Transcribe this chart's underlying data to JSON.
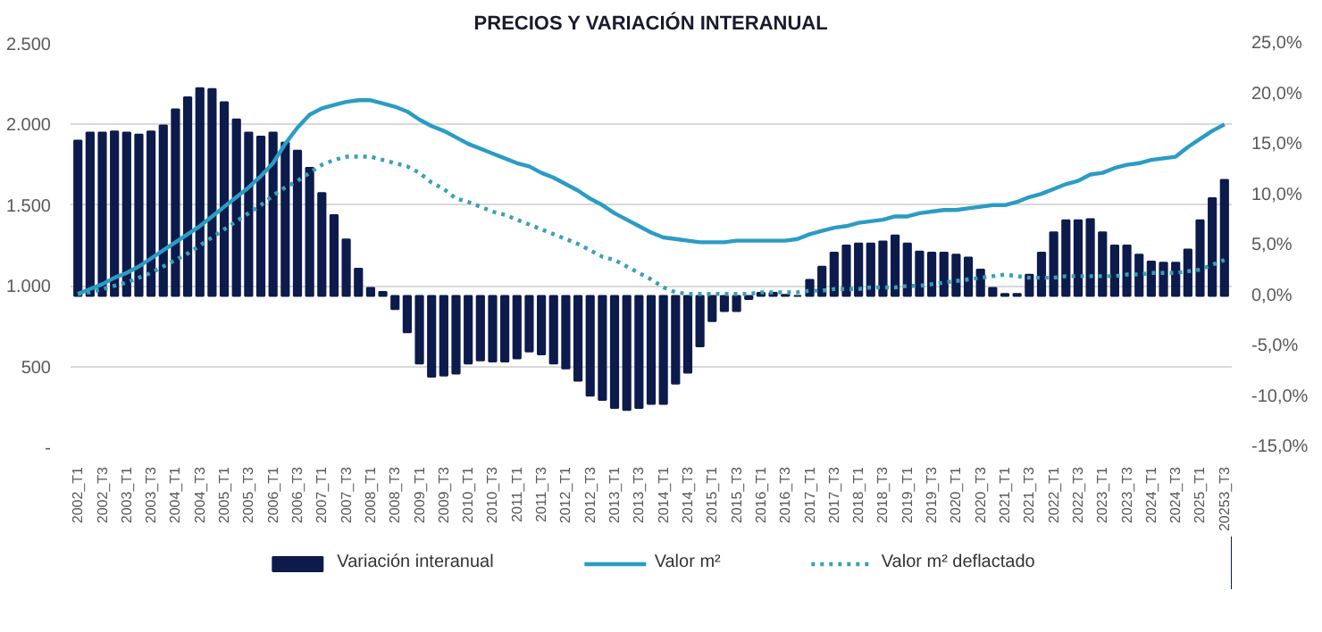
{
  "chart_data": {
    "type": "bar",
    "title": "PRECIOS Y VARIACIÓN INTERANUAL",
    "categories": [
      "2002_T1",
      null,
      "2002_T3",
      null,
      "2003_T1",
      null,
      "2003_T3",
      null,
      "2004_T1",
      null,
      "2004_T3",
      null,
      "2005_T1",
      null,
      "2005_T3",
      null,
      "2006_T1",
      null,
      "2006_T3",
      null,
      "2007_T1",
      null,
      "2007_T3",
      null,
      "2008_T1",
      null,
      "2008_T3",
      null,
      "2009_T1",
      null,
      "2009_T3",
      null,
      "2010_T1",
      null,
      "2010_T3",
      null,
      "2011_T1",
      null,
      "2011_T3",
      null,
      "2012_T1",
      null,
      "2012_T3",
      null,
      "2013_T1",
      null,
      "2013_T3",
      null,
      "2014_T1",
      null,
      "2014_T3",
      null,
      "2015_T1",
      null,
      "2015_T3",
      null,
      "2016_T1",
      null,
      "2016_T3",
      null,
      "2017_T1",
      null,
      "2017_T3",
      null,
      "2018_T1",
      null,
      "2018_T3",
      null,
      "2019_T1",
      null,
      "2019_T3",
      null,
      "2020_T1",
      null,
      "2020_T3",
      null,
      "2021_T1",
      null,
      "2021_T3",
      null,
      "2022_T1",
      null,
      "2022_T3",
      null,
      "2023_T1",
      null,
      "2023_T3",
      null,
      "2024_T1",
      null,
      "2024_T3",
      null,
      "2025_T1",
      null,
      "20253_T3"
    ],
    "series": [
      {
        "name": "Variación interanual",
        "axis": "y2",
        "color": "#0d1b4c",
        "values": [
          15.4,
          16.2,
          16.2,
          16.3,
          16.2,
          16.0,
          16.3,
          16.9,
          18.5,
          19.7,
          20.6,
          20.5,
          19.2,
          17.5,
          16.2,
          15.8,
          16.2,
          15.2,
          14.4,
          12.7,
          10.2,
          8.0,
          5.6,
          2.7,
          0.8,
          0.4,
          -1.3,
          -3.6,
          -6.7,
          -8.0,
          -7.9,
          -7.7,
          -6.7,
          -6.4,
          -6.5,
          -6.5,
          -6.2,
          -5.5,
          -5.8,
          -6.7,
          -7.2,
          -8.4,
          -9.9,
          -10.3,
          -11.1,
          -11.3,
          -11.1,
          -10.7,
          -10.7,
          -8.7,
          -7.6,
          -5.0,
          -2.5,
          -1.5,
          -1.5,
          -0.3,
          0.3,
          0.3,
          0.1,
          0.0,
          1.6,
          2.9,
          4.3,
          5.0,
          5.2,
          5.2,
          5.4,
          6.0,
          5.2,
          4.4,
          4.3,
          4.3,
          4.1,
          3.8,
          2.6,
          0.8,
          0.2,
          0.2,
          2.1,
          4.3,
          6.3,
          7.5,
          7.5,
          7.6,
          6.3,
          5.0,
          5.0,
          4.1,
          3.4,
          3.3,
          3.3,
          4.6,
          7.5,
          9.7,
          11.5
        ]
      },
      {
        "name": "Valor m²",
        "type": "line",
        "line_style": "solid",
        "color": "#2b9cc3",
        "values": [
          950,
          980,
          1010,
          1050,
          1080,
          1120,
          1170,
          1220,
          1270,
          1320,
          1370,
          1430,
          1490,
          1550,
          1610,
          1680,
          1760,
          1880,
          1980,
          2060,
          2100,
          2120,
          2140,
          2150,
          2150,
          2130,
          2110,
          2080,
          2030,
          1990,
          1960,
          1920,
          1880,
          1850,
          1820,
          1790,
          1760,
          1740,
          1700,
          1670,
          1630,
          1590,
          1540,
          1500,
          1450,
          1410,
          1370,
          1330,
          1300,
          1290,
          1280,
          1270,
          1270,
          1270,
          1280,
          1280,
          1280,
          1280,
          1280,
          1290,
          1320,
          1340,
          1360,
          1370,
          1390,
          1400,
          1410,
          1430,
          1430,
          1450,
          1460,
          1470,
          1470,
          1480,
          1490,
          1500,
          1500,
          1520,
          1550,
          1570,
          1600,
          1630,
          1650,
          1690,
          1700,
          1730,
          1750,
          1760,
          1780,
          1790,
          1800,
          1860,
          1910,
          1960,
          2000
        ]
      },
      {
        "name": "Valor m² deflactado",
        "type": "line",
        "line_style": "dotted",
        "color": "#3a9fb8",
        "values": [
          950,
          960,
          980,
          1000,
          1020,
          1050,
          1080,
          1120,
          1160,
          1200,
          1250,
          1300,
          1350,
          1400,
          1450,
          1500,
          1560,
          1610,
          1650,
          1700,
          1750,
          1780,
          1800,
          1800,
          1800,
          1780,
          1760,
          1740,
          1700,
          1640,
          1600,
          1540,
          1520,
          1490,
          1460,
          1440,
          1410,
          1380,
          1350,
          1320,
          1290,
          1260,
          1220,
          1180,
          1160,
          1120,
          1080,
          1040,
          990,
          960,
          950,
          950,
          950,
          950,
          950,
          950,
          960,
          960,
          960,
          960,
          970,
          970,
          980,
          980,
          980,
          990,
          990,
          990,
          1000,
          1000,
          1010,
          1020,
          1030,
          1040,
          1050,
          1060,
          1070,
          1060,
          1050,
          1050,
          1050,
          1060,
          1060,
          1060,
          1060,
          1060,
          1070,
          1070,
          1080,
          1080,
          1080,
          1090,
          1100,
          1130,
          1160
        ]
      }
    ],
    "ylim": [
      0,
      2500
    ],
    "yticks": [
      {
        "value": 0,
        "label": "-"
      },
      500,
      {
        "value": 1000,
        "label": "1.000"
      },
      {
        "value": 1500,
        "label": "1.500"
      },
      {
        "value": 2000,
        "label": "2.000"
      },
      {
        "value": 2500,
        "label": "2.500"
      }
    ],
    "y2lim": [
      -15,
      25
    ],
    "y2ticks": [
      {
        "value": -15,
        "label": "-15,0%"
      },
      {
        "value": -10,
        "label": "-10,0%"
      },
      {
        "value": -5,
        "label": "-5,0%"
      },
      {
        "value": 0,
        "label": "0,0%"
      },
      {
        "value": 5,
        "label": "5,0%"
      },
      {
        "value": 10,
        "label": "10,0%"
      },
      {
        "value": 15,
        "label": "15,0%"
      },
      {
        "value": 20,
        "label": "20,0%"
      },
      {
        "value": 25,
        "label": "25,0%"
      }
    ],
    "grid": "y",
    "legend": "bottom"
  }
}
